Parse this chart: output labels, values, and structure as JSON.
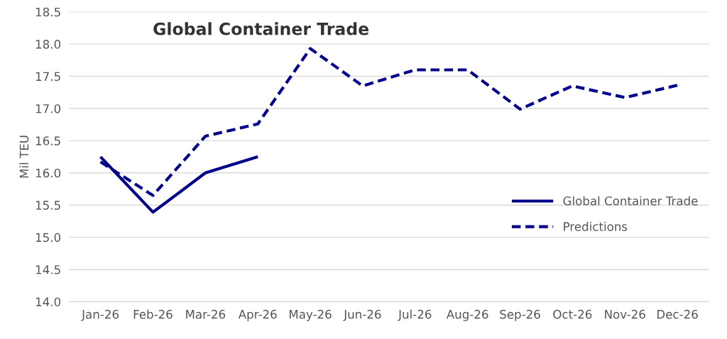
{
  "chart_data": {
    "type": "line",
    "title": "Global Container Trade",
    "ylabel": "Mil TEU",
    "categories": [
      "Jan-26",
      "Feb-26",
      "Mar-26",
      "Apr-26",
      "May-26",
      "Jun-26",
      "Jul-26",
      "Aug-26",
      "Sep-26",
      "Oct-26",
      "Nov-26",
      "Dec-26"
    ],
    "series": [
      {
        "name": "Global Container Trade",
        "color": "#00008b",
        "line_style": "solid",
        "values": [
          16.25,
          15.39,
          16.0,
          16.25,
          null,
          null,
          null,
          null,
          null,
          null,
          null,
          null
        ]
      },
      {
        "name": "Predictions",
        "color": "#00008b",
        "line_style": "dashed",
        "values": [
          16.17,
          15.65,
          16.57,
          16.76,
          17.93,
          17.35,
          17.6,
          17.6,
          16.99,
          17.35,
          17.17,
          17.36
        ]
      }
    ],
    "ylim": [
      14.0,
      18.5
    ],
    "yticks": [
      {
        "value": 14.0,
        "label": "14.0"
      },
      {
        "value": 14.5,
        "label": "14.5"
      },
      {
        "value": 15.0,
        "label": "15.0"
      },
      {
        "value": 15.5,
        "label": "15.5"
      },
      {
        "value": 16.0,
        "label": "16.0"
      },
      {
        "value": 16.5,
        "label": "16.5"
      },
      {
        "value": 17.0,
        "label": "17.0"
      },
      {
        "value": 17.5,
        "label": "17.5"
      },
      {
        "value": 18.0,
        "label": "18.0"
      },
      {
        "value": 18.5,
        "label": "18.5"
      }
    ],
    "grid": "y",
    "legend": "right",
    "marker": "none"
  }
}
